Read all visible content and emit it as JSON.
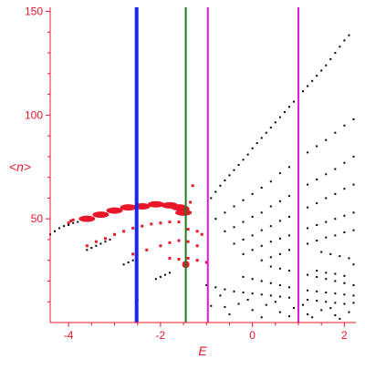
{
  "colors": {
    "axis": "#e8182a",
    "black_points": "#000000",
    "red_points": "#e8182a",
    "blue_line": "#1a28e6",
    "green_line": "#1e7a1e",
    "magenta_line": "#e018e0"
  },
  "chart_data": {
    "type": "scatter",
    "title": "",
    "xlabel": "E",
    "ylabel": "<n>",
    "xlim": [
      -4.4,
      2.25
    ],
    "ylim": [
      0,
      152
    ],
    "x_ticks": [
      -4,
      -2,
      0,
      2
    ],
    "y_ticks": [
      50,
      100,
      150
    ],
    "x_tick_labels": [
      "-4",
      "-2",
      "0",
      "2"
    ],
    "y_tick_labels": [
      "50",
      "100",
      "150"
    ],
    "grid": false,
    "legend": "none",
    "vertical_lines": [
      {
        "x": -2.52,
        "color": "blue"
      },
      {
        "x": -1.45,
        "color": "green"
      },
      {
        "x": -0.97,
        "color": "magenta"
      },
      {
        "x": 1.0,
        "color": "magenta"
      }
    ],
    "series": [
      {
        "kind": "black-dots",
        "points": [
          [
            -4.4,
            42.5
          ],
          [
            -4.3,
            44
          ],
          [
            -4.2,
            45.5
          ],
          [
            -4.1,
            46.5
          ],
          [
            -4.0,
            47
          ],
          [
            -3.9,
            48
          ],
          [
            -3.8,
            48.5
          ],
          [
            -3.6,
            35
          ],
          [
            -3.5,
            36
          ],
          [
            -3.4,
            37
          ],
          [
            -3.3,
            38
          ],
          [
            -3.2,
            39
          ],
          [
            -3.1,
            40
          ],
          [
            -2.8,
            28
          ],
          [
            -2.7,
            29
          ],
          [
            -2.6,
            30
          ],
          [
            -2.1,
            21
          ],
          [
            -2.0,
            22
          ],
          [
            -1.9,
            23
          ],
          [
            -1.8,
            24
          ],
          [
            -0.9,
            60
          ],
          [
            -0.8,
            63
          ],
          [
            -0.7,
            66
          ],
          [
            -0.6,
            68.5
          ],
          [
            -0.5,
            71
          ],
          [
            -0.4,
            73.5
          ],
          [
            -0.3,
            76
          ],
          [
            -0.2,
            78.5
          ],
          [
            -0.1,
            81
          ],
          [
            0.0,
            84
          ],
          [
            0.1,
            86.5
          ],
          [
            0.2,
            89
          ],
          [
            0.3,
            91.5
          ],
          [
            0.4,
            94
          ],
          [
            0.5,
            96.5
          ],
          [
            0.6,
            99
          ],
          [
            0.7,
            101.5
          ],
          [
            0.8,
            104
          ],
          [
            0.9,
            106.5
          ],
          [
            1.0,
            109
          ],
          [
            1.1,
            111.5
          ],
          [
            1.2,
            114
          ],
          [
            1.3,
            116.5
          ],
          [
            1.4,
            119
          ],
          [
            1.5,
            121.5
          ],
          [
            1.6,
            124
          ],
          [
            1.7,
            127
          ],
          [
            1.8,
            130
          ],
          [
            1.9,
            133
          ],
          [
            2.0,
            136
          ],
          [
            2.1,
            138.5
          ],
          [
            -0.8,
            50
          ],
          [
            -0.6,
            53
          ],
          [
            -0.4,
            56
          ],
          [
            -0.2,
            59
          ],
          [
            0.0,
            62
          ],
          [
            0.2,
            65
          ],
          [
            0.4,
            68
          ],
          [
            0.6,
            72
          ],
          [
            0.8,
            75
          ],
          [
            1.0,
            78.5
          ],
          [
            1.2,
            82
          ],
          [
            1.4,
            85
          ],
          [
            1.6,
            88
          ],
          [
            1.8,
            91.5
          ],
          [
            2.0,
            95
          ],
          [
            2.2,
            98
          ],
          [
            -0.6,
            44
          ],
          [
            -0.4,
            46
          ],
          [
            -0.2,
            48.5
          ],
          [
            0.0,
            51
          ],
          [
            0.2,
            53
          ],
          [
            0.4,
            56
          ],
          [
            0.6,
            58.5
          ],
          [
            0.8,
            61
          ],
          [
            1.0,
            64
          ],
          [
            1.2,
            66.5
          ],
          [
            1.4,
            69
          ],
          [
            1.6,
            71.5
          ],
          [
            1.8,
            74
          ],
          [
            2.0,
            77
          ],
          [
            2.2,
            80
          ],
          [
            -0.4,
            38
          ],
          [
            -0.2,
            40
          ],
          [
            0.0,
            42
          ],
          [
            0.2,
            44.5
          ],
          [
            0.4,
            46.5
          ],
          [
            0.6,
            49
          ],
          [
            0.8,
            51
          ],
          [
            1.0,
            53
          ],
          [
            1.2,
            55.5
          ],
          [
            1.4,
            57.5
          ],
          [
            1.6,
            60
          ],
          [
            1.8,
            62
          ],
          [
            2.0,
            64.5
          ],
          [
            2.2,
            66.5
          ],
          [
            -0.2,
            33
          ],
          [
            0.0,
            35
          ],
          [
            0.2,
            37
          ],
          [
            0.4,
            39
          ],
          [
            0.6,
            40.5
          ],
          [
            0.8,
            42
          ],
          [
            1.0,
            44
          ],
          [
            1.2,
            45.5
          ],
          [
            1.4,
            47
          ],
          [
            1.6,
            48.5
          ],
          [
            1.8,
            50
          ],
          [
            2.0,
            51.5
          ],
          [
            2.2,
            53
          ],
          [
            0.2,
            30
          ],
          [
            0.4,
            31.5
          ],
          [
            0.6,
            33
          ],
          [
            0.8,
            35
          ],
          [
            1.0,
            36.5
          ],
          [
            1.2,
            38
          ],
          [
            1.4,
            39.5
          ],
          [
            1.6,
            41
          ],
          [
            1.8,
            42
          ],
          [
            2.0,
            43.5
          ],
          [
            2.2,
            44.5
          ],
          [
            -1.0,
            18
          ],
          [
            -0.8,
            17
          ],
          [
            -0.6,
            16
          ],
          [
            -0.4,
            15
          ],
          [
            -0.2,
            14.5
          ],
          [
            0.0,
            14
          ],
          [
            0.2,
            13.5
          ],
          [
            0.4,
            13
          ],
          [
            0.6,
            12.5
          ],
          [
            0.8,
            12
          ],
          [
            1.0,
            11.5
          ],
          [
            1.2,
            11
          ],
          [
            1.4,
            10.5
          ],
          [
            1.6,
            10
          ],
          [
            1.8,
            9.5
          ],
          [
            2.0,
            9
          ],
          [
            -0.2,
            22
          ],
          [
            0.0,
            21
          ],
          [
            0.2,
            20
          ],
          [
            0.4,
            19
          ],
          [
            0.6,
            18
          ],
          [
            0.8,
            17
          ],
          [
            1.0,
            16
          ],
          [
            1.2,
            15.5
          ],
          [
            1.4,
            15
          ],
          [
            1.6,
            14.5
          ],
          [
            1.8,
            14
          ],
          [
            2.0,
            13.5
          ],
          [
            2.2,
            13
          ],
          [
            0.4,
            27
          ],
          [
            0.6,
            26
          ],
          [
            0.8,
            25
          ],
          [
            1.0,
            24
          ],
          [
            1.2,
            23
          ],
          [
            1.4,
            22
          ],
          [
            1.6,
            21
          ],
          [
            1.8,
            20
          ],
          [
            2.0,
            19
          ],
          [
            2.2,
            18
          ],
          [
            -0.9,
            8
          ],
          [
            -0.6,
            7.5
          ],
          [
            -0.3,
            9
          ],
          [
            0.0,
            6
          ],
          [
            0.3,
            8.5
          ],
          [
            0.6,
            5
          ],
          [
            0.9,
            7
          ],
          [
            1.2,
            4
          ],
          [
            1.5,
            6
          ],
          [
            1.8,
            3.5
          ],
          [
            2.1,
            5
          ],
          [
            -0.7,
            13
          ],
          [
            -0.1,
            11
          ],
          [
            0.5,
            10
          ],
          [
            1.1,
            8.5
          ],
          [
            1.7,
            7
          ],
          [
            2.2,
            9.5
          ],
          [
            1.4,
            25
          ],
          [
            1.6,
            24
          ],
          [
            1.8,
            23.5
          ],
          [
            2.0,
            22.5
          ],
          [
            1.5,
            34
          ],
          [
            1.7,
            33
          ],
          [
            1.9,
            32
          ],
          [
            2.1,
            31
          ],
          [
            2.2,
            28
          ],
          [
            -2.5,
            11
          ],
          [
            -0.5,
            4
          ],
          [
            0.2,
            2.5
          ],
          [
            0.8,
            3
          ],
          [
            1.3,
            2.5
          ],
          [
            1.9,
            1.8
          ]
        ]
      },
      {
        "kind": "red-dots",
        "points": [
          [
            -4.0,
            48
          ],
          [
            -3.95,
            49
          ],
          [
            -3.9,
            49.5
          ],
          [
            -3.6,
            37
          ],
          [
            -3.4,
            39
          ],
          [
            -3.2,
            40.5
          ],
          [
            -3.0,
            42.5
          ],
          [
            -2.8,
            44
          ],
          [
            -2.6,
            45.5
          ],
          [
            -2.4,
            46.5
          ],
          [
            -2.2,
            47.5
          ],
          [
            -2.0,
            48
          ],
          [
            -1.8,
            48.5
          ],
          [
            -1.6,
            48.5
          ],
          [
            -2.6,
            33
          ],
          [
            -2.3,
            35
          ],
          [
            -2.0,
            37
          ],
          [
            -1.8,
            38.5
          ],
          [
            -1.6,
            39.5
          ],
          [
            -1.4,
            39
          ],
          [
            -1.2,
            37
          ],
          [
            -1.8,
            31
          ],
          [
            -1.6,
            30.5
          ],
          [
            -1.4,
            31
          ],
          [
            -1.2,
            30
          ],
          [
            -1.0,
            29
          ],
          [
            -1.35,
            58
          ],
          [
            -1.3,
            66
          ],
          [
            -1.4,
            45
          ],
          [
            -1.2,
            44
          ],
          [
            -1.1,
            42.5
          ]
        ]
      },
      {
        "kind": "red-large-blobs",
        "points": [
          [
            -3.6,
            50
          ],
          [
            -3.3,
            52
          ],
          [
            -3.0,
            54
          ],
          [
            -2.7,
            55.5
          ],
          [
            -2.4,
            56
          ],
          [
            -2.1,
            57
          ],
          [
            -1.8,
            56.5
          ],
          [
            -1.6,
            55.5
          ],
          [
            -1.5,
            53
          ]
        ]
      },
      {
        "kind": "red-big-dots",
        "points": [
          [
            -1.45,
            54.5
          ],
          [
            -1.45,
            28
          ]
        ]
      }
    ]
  }
}
